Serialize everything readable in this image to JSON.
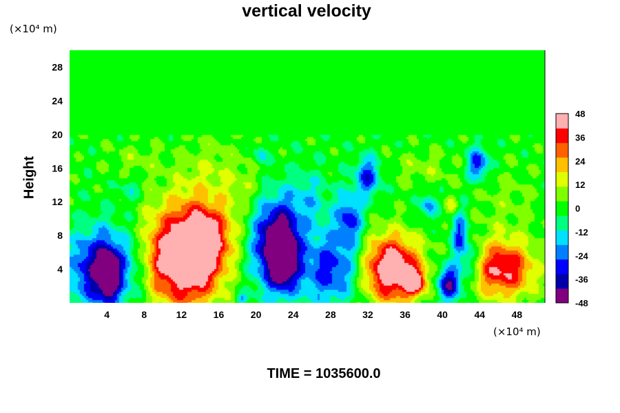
{
  "chart_data": {
    "type": "heatmap",
    "title": "vertical velocity",
    "xlabel": "",
    "ylabel": "Height",
    "x_unit": "(×10⁴ m)",
    "y_unit": "(×10⁴ m)",
    "xlim": [
      0,
      51
    ],
    "ylim": [
      0,
      30
    ],
    "x_ticks": [
      4,
      8,
      12,
      16,
      20,
      24,
      28,
      32,
      36,
      40,
      44,
      48
    ],
    "y_ticks": [
      4,
      8,
      12,
      16,
      20,
      24,
      28
    ],
    "colorbar": {
      "ticks": [
        48,
        36,
        24,
        12,
        0,
        -12,
        -24,
        -36,
        -48
      ],
      "range": [
        -48,
        48
      ],
      "colors": [
        "#800080",
        "#0000aa",
        "#0000ff",
        "#0080ff",
        "#00e0ff",
        "#00ff80",
        "#00ff00",
        "#80ff00",
        "#e0ff00",
        "#ffc000",
        "#ff6000",
        "#ff0000",
        "#ffb0b0"
      ]
    },
    "features": [
      {
        "x": 3.5,
        "y": 4.0,
        "value": -45,
        "sx": 2.3,
        "sy": 3.2
      },
      {
        "x": 4.2,
        "y": 3.2,
        "value": -50,
        "sx": 0.6,
        "sy": 1.6
      },
      {
        "x": 12.5,
        "y": 4.5,
        "value": 55,
        "sx": 2.6,
        "sy": 3.6
      },
      {
        "x": 14.5,
        "y": 7.5,
        "value": 30,
        "sx": 2.0,
        "sy": 2.5
      },
      {
        "x": 22.0,
        "y": 7.0,
        "value": -48,
        "sx": 1.7,
        "sy": 3.6
      },
      {
        "x": 23.0,
        "y": 5.5,
        "value": -40,
        "sx": 1.0,
        "sy": 2.6
      },
      {
        "x": 28.0,
        "y": 4.0,
        "value": -30,
        "sx": 2.4,
        "sy": 3.0
      },
      {
        "x": 30.0,
        "y": 10.0,
        "value": -28,
        "sx": 1.0,
        "sy": 2.2
      },
      {
        "x": 32.0,
        "y": 15.0,
        "value": -30,
        "sx": 0.9,
        "sy": 1.6
      },
      {
        "x": 34.5,
        "y": 4.0,
        "value": 55,
        "sx": 2.2,
        "sy": 2.8
      },
      {
        "x": 37.0,
        "y": 2.5,
        "value": 40,
        "sx": 0.8,
        "sy": 1.0
      },
      {
        "x": 40.8,
        "y": 2.3,
        "value": -42,
        "sx": 0.9,
        "sy": 1.5
      },
      {
        "x": 41.8,
        "y": 8.0,
        "value": -28,
        "sx": 0.6,
        "sy": 2.0
      },
      {
        "x": 43.0,
        "y": 5.0,
        "value": -20,
        "sx": 0.7,
        "sy": 1.8
      },
      {
        "x": 46.5,
        "y": 4.0,
        "value": 42,
        "sx": 2.4,
        "sy": 2.4
      },
      {
        "x": 43.8,
        "y": 16.5,
        "value": -32,
        "sx": 0.8,
        "sy": 1.3
      },
      {
        "x": 38.5,
        "y": 11.5,
        "value": -22,
        "sx": 0.6,
        "sy": 1.0
      },
      {
        "x": 41.0,
        "y": 11.5,
        "value": 14,
        "sx": 0.5,
        "sy": 0.8
      },
      {
        "x": 13.0,
        "y": 10.5,
        "value": 14,
        "sx": 3.5,
        "sy": 3.0
      },
      {
        "x": 15.0,
        "y": 16.0,
        "value": 8,
        "sx": 2.5,
        "sy": 3.0
      },
      {
        "x": 7.0,
        "y": 17.0,
        "value": 7,
        "sx": 2.0,
        "sy": 1.5
      },
      {
        "x": 25.5,
        "y": 12.0,
        "value": -14,
        "sx": 1.6,
        "sy": 2.5
      },
      {
        "x": 19.0,
        "y": 14.0,
        "value": 6,
        "sx": 1.5,
        "sy": 2.0
      },
      {
        "x": 38.0,
        "y": 16.0,
        "value": 8,
        "sx": 2.5,
        "sy": 1.5
      },
      {
        "x": 47.0,
        "y": 12.0,
        "value": 6,
        "sx": 2.5,
        "sy": 3.0
      },
      {
        "x": 9.5,
        "y": 6.0,
        "value": 10,
        "sx": 1.0,
        "sy": 3.0
      },
      {
        "x": 18.5,
        "y": 0.5,
        "value": -20,
        "sx": 0.4,
        "sy": 0.4
      },
      {
        "x": 20.5,
        "y": 17.5,
        "value": -14,
        "sx": 0.5,
        "sy": 0.8
      },
      {
        "x": 6.5,
        "y": 13.5,
        "value": -10,
        "sx": 0.8,
        "sy": 1.2
      }
    ],
    "quiet_above": 20,
    "grid": false,
    "legend": "right colorbar"
  },
  "footer": {
    "time_label": "TIME = 1035600.0"
  }
}
